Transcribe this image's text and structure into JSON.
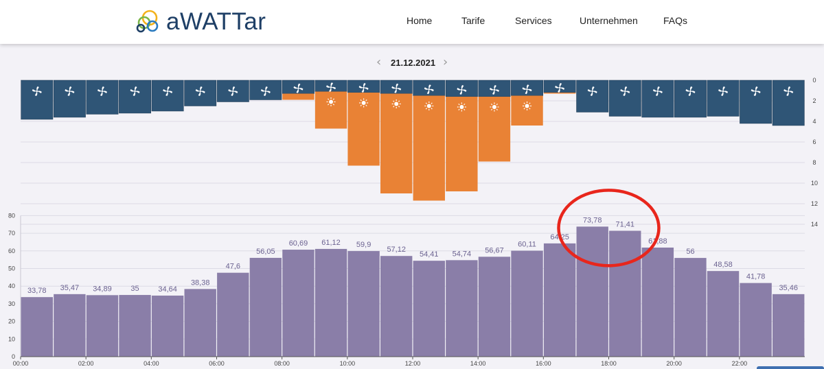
{
  "header": {
    "logo_text": "aWATTar",
    "nav": [
      {
        "label": "Home"
      },
      {
        "label": "Tarife"
      },
      {
        "label": "Services"
      },
      {
        "label": "Unternehmen"
      },
      {
        "label": "FAQs"
      }
    ]
  },
  "date_nav": {
    "prev_icon": "chevron-left-icon",
    "next_icon": "chevron-right-icon",
    "date": "21.12.2021"
  },
  "colors": {
    "wind": "#2f5576",
    "solar": "#e98235",
    "price": "#8a7ea8",
    "highlight": "#e8261c",
    "logo_rings": [
      "#f3b21b",
      "#7ab648",
      "#2b7bbf",
      "#1e3f66"
    ]
  },
  "chart_data": [
    {
      "type": "bar",
      "name": "generation",
      "orientation": "downward",
      "hours": [
        "00:00",
        "01:00",
        "02:00",
        "03:00",
        "04:00",
        "05:00",
        "06:00",
        "07:00",
        "08:00",
        "09:00",
        "10:00",
        "11:00",
        "12:00",
        "13:00",
        "14:00",
        "15:00",
        "16:00",
        "17:00",
        "18:00",
        "19:00",
        "20:00",
        "21:00",
        "22:00",
        "23:00"
      ],
      "series": [
        {
          "icon": "wind-icon",
          "values": [
            3.8,
            3.6,
            3.3,
            3.2,
            3.0,
            2.5,
            2.1,
            1.9,
            1.3,
            1.1,
            1.2,
            1.3,
            1.5,
            1.6,
            1.6,
            1.5,
            1.2,
            3.1,
            3.5,
            3.6,
            3.6,
            3.5,
            4.2,
            4.4
          ]
        },
        {
          "icon": "sun-icon",
          "values": [
            0,
            0,
            0,
            0,
            0,
            0,
            0,
            0,
            0.6,
            3.6,
            7.1,
            9.7,
            10.2,
            9.2,
            6.3,
            2.9,
            0.1,
            0,
            0,
            0,
            0,
            0,
            0,
            0
          ]
        }
      ],
      "ylim": [
        0,
        14
      ],
      "yticks": [
        "0",
        "2",
        "4",
        "6",
        "8",
        "10",
        "12",
        "14"
      ]
    },
    {
      "type": "bar",
      "name": "price",
      "categories": [
        "00:00",
        "01:00",
        "02:00",
        "03:00",
        "04:00",
        "05:00",
        "06:00",
        "07:00",
        "08:00",
        "09:00",
        "10:00",
        "11:00",
        "12:00",
        "13:00",
        "14:00",
        "15:00",
        "16:00",
        "17:00",
        "18:00",
        "19:00",
        "20:00",
        "21:00",
        "22:00",
        "23:00"
      ],
      "values": [
        33.78,
        35.47,
        34.89,
        35,
        34.64,
        38.38,
        47.6,
        56.05,
        60.69,
        61.12,
        59.9,
        57.12,
        54.41,
        54.74,
        56.67,
        60.11,
        64.25,
        73.78,
        71.41,
        61.88,
        56,
        48.58,
        41.78,
        35.46
      ],
      "labels": [
        "33,78",
        "35,47",
        "34,89",
        "35",
        "34,64",
        "38,38",
        "47,6",
        "56,05",
        "60,69",
        "61,12",
        "59,9",
        "57,12",
        "54,41",
        "54,74",
        "56,67",
        "60,11",
        "64,25",
        "73,78",
        "71,41",
        "61,88",
        "56",
        "48,58",
        "41,78",
        "35,46"
      ],
      "ylim": [
        0,
        80
      ],
      "yticks": [
        "0",
        "10",
        "20",
        "30",
        "40",
        "50",
        "60",
        "70",
        "80"
      ],
      "xticks": [
        "00:00",
        "02:00",
        "04:00",
        "06:00",
        "08:00",
        "10:00",
        "12:00",
        "14:00",
        "16:00",
        "18:00",
        "20:00",
        "22:00"
      ],
      "highlight": [
        "17:00",
        "18:00"
      ]
    }
  ]
}
